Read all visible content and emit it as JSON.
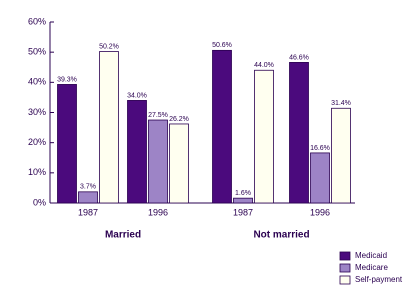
{
  "chart_data": {
    "type": "bar",
    "categories": [
      "1987",
      "1996",
      "1987",
      "1996"
    ],
    "groups": [
      "Married",
      "Not married"
    ],
    "series": [
      {
        "name": "Medicaid",
        "color": "#4b0a7d",
        "values": [
          39.3,
          34.0,
          50.6,
          46.6
        ],
        "value_labels": [
          "39.3%",
          "34.0%",
          "50.6%",
          "46.6%"
        ]
      },
      {
        "name": "Medicare",
        "color": "#9d84c6",
        "values": [
          3.7,
          27.5,
          1.6,
          16.6
        ],
        "value_labels": [
          "3.7%",
          "27.5%",
          "1.6%",
          "16.6%"
        ]
      },
      {
        "name": "Self-payment",
        "color": "#fffff0",
        "values": [
          50.2,
          26.2,
          44.0,
          31.4
        ],
        "value_labels": [
          "50.2%",
          "26.2%",
          "44.0%",
          "31.4%"
        ]
      }
    ],
    "ylim": [
      0,
      60
    ],
    "yticks": [
      {
        "value": 0,
        "label": "0%"
      },
      {
        "value": 10,
        "label": "10%"
      },
      {
        "value": 20,
        "label": "20%"
      },
      {
        "value": 30,
        "label": "30%"
      },
      {
        "value": 40,
        "label": "40%"
      },
      {
        "value": 50,
        "label": "50%"
      },
      {
        "value": 60,
        "label": "60%"
      }
    ]
  }
}
